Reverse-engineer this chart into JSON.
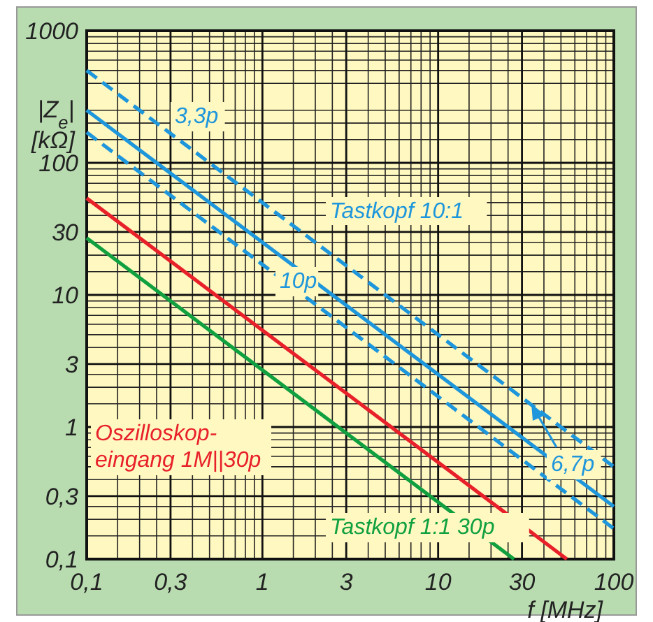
{
  "chart_data": {
    "type": "line",
    "xlabel": "f [MHz]",
    "ylabel": "|Z$_{e}$| [kΩ]",
    "log": "xy",
    "xlim": [
      0.1,
      100
    ],
    "ylim": [
      0.1,
      1000
    ],
    "xticks": [
      {
        "value": 0.1,
        "label": "0,1"
      },
      {
        "value": 0.3,
        "label": "0,3"
      },
      1,
      3,
      10,
      30,
      100
    ],
    "yticks": [
      {
        "value": 0.1,
        "label": "0,1"
      },
      {
        "value": 0.3,
        "label": "0,3"
      },
      1,
      3,
      10,
      30,
      100,
      1000
    ],
    "grid": true,
    "series": [
      {
        "name": "3,3p",
        "color": "#1e96dc",
        "line_style": "dashed",
        "x": [
          0.1,
          100
        ],
        "values": [
          500,
          0.5
        ]
      },
      {
        "name": "6,7p",
        "color": "#1e96dc",
        "line_style": "solid",
        "x": [
          0.1,
          100
        ],
        "values": [
          250,
          0.25
        ]
      },
      {
        "name": "10p",
        "color": "#1e96dc",
        "line_style": "dashed",
        "x": [
          0.1,
          100
        ],
        "values": [
          170,
          0.17
        ]
      },
      {
        "name": "Oszilloskop-\neingang 1M||30p",
        "color": "#e8202a",
        "line_style": "solid",
        "x": [
          0.1,
          54
        ],
        "values": [
          54,
          0.1
        ]
      },
      {
        "name": "Tastkopf 1:1  30p",
        "color": "#10a040",
        "line_style": "solid",
        "x": [
          0.1,
          27
        ],
        "values": [
          27,
          0.1
        ]
      }
    ],
    "annotations": [
      "Tastkopf 10:1"
    ]
  }
}
